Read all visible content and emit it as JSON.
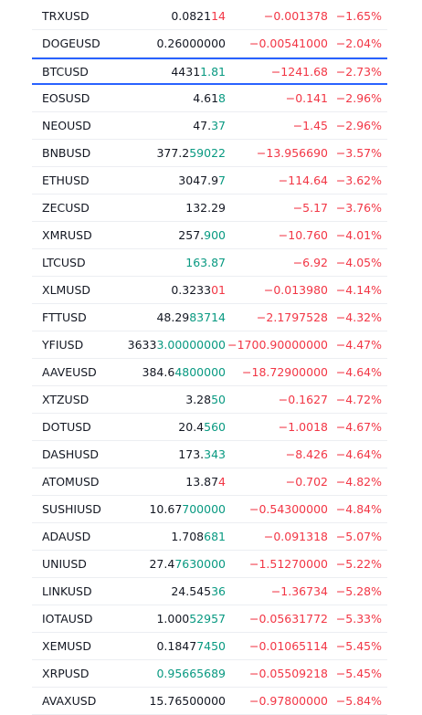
{
  "selected_row": 2,
  "rows": [
    {
      "symbol": "TRXUSD",
      "price": [
        "0.0821",
        "14"
      ],
      "flash": "down",
      "change": "−0.001378",
      "change_pct": "−1.65%"
    },
    {
      "symbol": "DOGEUSD",
      "price": [
        "0.26000000"
      ],
      "change": "−0.00541000",
      "change_pct": "−2.04%"
    },
    {
      "symbol": "BTCUSD",
      "price": [
        "4431",
        "1.81"
      ],
      "flash": "up",
      "change": "−1241.68",
      "change_pct": "−2.73%"
    },
    {
      "symbol": "EOSUSD",
      "price": [
        "4.61",
        "8"
      ],
      "flash": "up",
      "change": "−0.141",
      "change_pct": "−2.96%"
    },
    {
      "symbol": "NEOUSD",
      "price": [
        "47.",
        "37"
      ],
      "flash": "up",
      "change": "−1.45",
      "change_pct": "−2.96%"
    },
    {
      "symbol": "BNBUSD",
      "price": [
        "377.2",
        "59022"
      ],
      "flash": "up",
      "change": "−13.956690",
      "change_pct": "−3.57%"
    },
    {
      "symbol": "ETHUSD",
      "price": [
        "3047.9",
        "7"
      ],
      "flash": "up",
      "change": "−114.64",
      "change_pct": "−3.62%"
    },
    {
      "symbol": "ZECUSD",
      "price": [
        "132.29"
      ],
      "change": "−5.17",
      "change_pct": "−3.76%"
    },
    {
      "symbol": "XMRUSD",
      "price": [
        "257.",
        "900"
      ],
      "flash": "up",
      "change": "−10.760",
      "change_pct": "−4.01%"
    },
    {
      "symbol": "LTCUSD",
      "price": [
        "",
        "163.87"
      ],
      "flash": "up",
      "change": "−6.92",
      "change_pct": "−4.05%"
    },
    {
      "symbol": "XLMUSD",
      "price": [
        "0.3233",
        "01"
      ],
      "flash": "down",
      "change": "−0.013980",
      "change_pct": "−4.14%"
    },
    {
      "symbol": "FTTUSD",
      "price": [
        "48.29",
        "83714"
      ],
      "flash": "up",
      "change": "−2.1797528",
      "change_pct": "−4.32%"
    },
    {
      "symbol": "YFIUSD",
      "price": [
        "3633",
        "3.00000000"
      ],
      "flash": "up",
      "change": "−1700.90000000",
      "change_pct": "−4.47%"
    },
    {
      "symbol": "AAVEUSD",
      "price": [
        "384.6",
        "4800000"
      ],
      "flash": "up",
      "change": "−18.72900000",
      "change_pct": "−4.64%"
    },
    {
      "symbol": "XTZUSD",
      "price": [
        "3.28",
        "50"
      ],
      "flash": "up",
      "change": "−0.1627",
      "change_pct": "−4.72%"
    },
    {
      "symbol": "DOTUSD",
      "price": [
        "20.4",
        "560"
      ],
      "flash": "up",
      "change": "−1.0018",
      "change_pct": "−4.67%"
    },
    {
      "symbol": "DASHUSD",
      "price": [
        "173.",
        "343"
      ],
      "flash": "up",
      "change": "−8.426",
      "change_pct": "−4.64%"
    },
    {
      "symbol": "ATOMUSD",
      "price": [
        "13.87",
        "4"
      ],
      "flash": "down",
      "change": "−0.702",
      "change_pct": "−4.82%"
    },
    {
      "symbol": "SUSHIUSD",
      "price": [
        "10.67",
        "700000"
      ],
      "flash": "up",
      "change": "−0.54300000",
      "change_pct": "−4.84%"
    },
    {
      "symbol": "ADAUSD",
      "price": [
        "1.708",
        "681"
      ],
      "flash": "up",
      "change": "−0.091318",
      "change_pct": "−5.07%"
    },
    {
      "symbol": "UNIUSD",
      "price": [
        "27.4",
        "7630000"
      ],
      "flash": "up",
      "change": "−1.51270000",
      "change_pct": "−5.22%"
    },
    {
      "symbol": "LINKUSD",
      "price": [
        "24.545",
        "36"
      ],
      "flash": "up",
      "change": "−1.36734",
      "change_pct": "−5.28%"
    },
    {
      "symbol": "IOTAUSD",
      "price": [
        "1.000",
        "52957"
      ],
      "flash": "up",
      "change": "−0.05631772",
      "change_pct": "−5.33%"
    },
    {
      "symbol": "XEMUSD",
      "price": [
        "0.1847",
        "7450"
      ],
      "flash": "up",
      "change": "−0.01065114",
      "change_pct": "−5.45%"
    },
    {
      "symbol": "XRPUSD",
      "price": [
        "",
        "0.95665689"
      ],
      "flash": "up",
      "change": "−0.05509218",
      "change_pct": "−5.45%"
    },
    {
      "symbol": "AVAXUSD",
      "price": [
        "15.76500000"
      ],
      "change": "−0.97800000",
      "change_pct": "−5.84%"
    }
  ]
}
